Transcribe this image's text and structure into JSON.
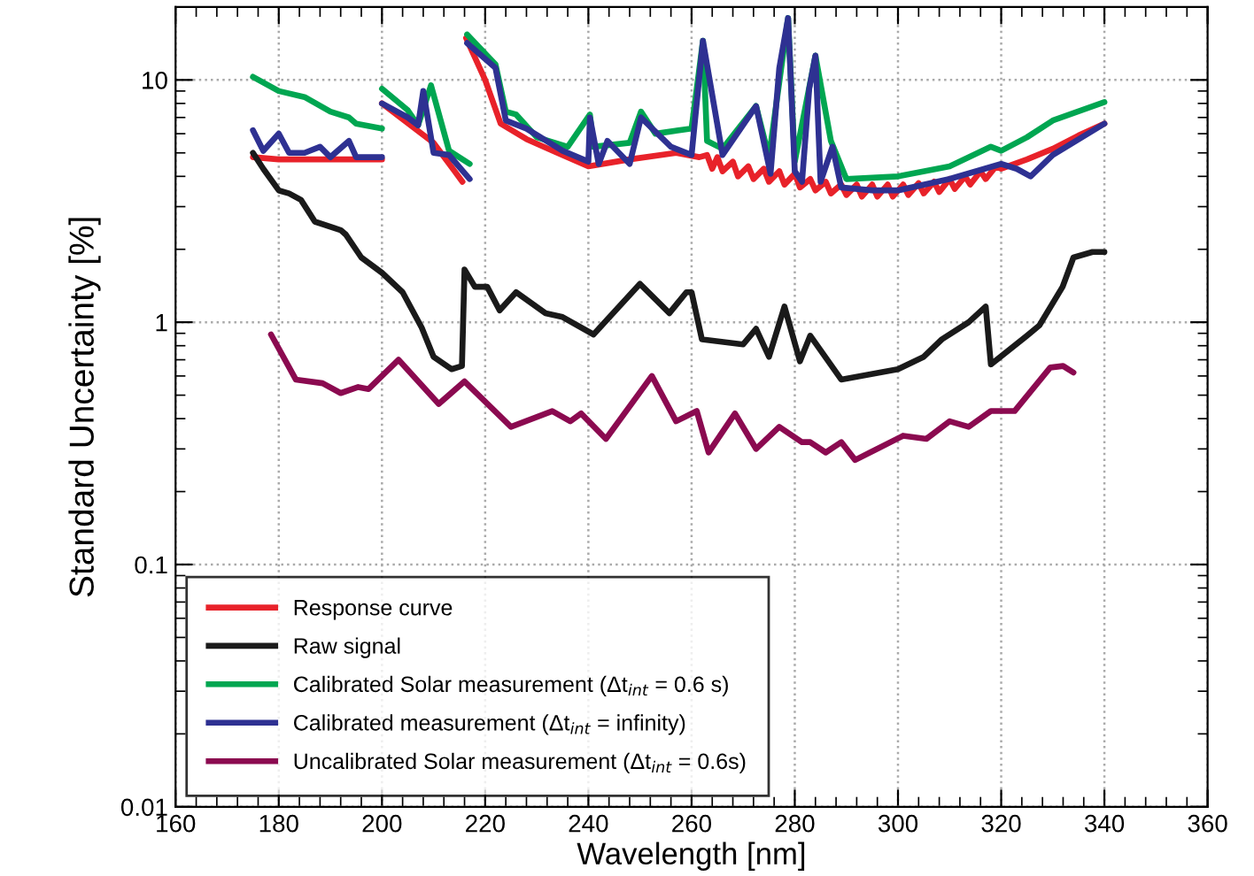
{
  "chart_data": {
    "type": "line",
    "xlabel": "Wavelength [nm]",
    "ylabel": "Standard Uncertainty [%]",
    "xlim": [
      160,
      360
    ],
    "xticks": [
      160,
      180,
      200,
      220,
      240,
      260,
      280,
      300,
      320,
      340,
      360
    ],
    "ylim": [
      0.01,
      20
    ],
    "yticks": [
      0.01,
      0.1,
      1,
      10
    ],
    "log": "y",
    "grid": true,
    "legend": "bottom left",
    "line_style": "solid",
    "marker": "none",
    "series": [
      {
        "name": "Response curve",
        "color": "#e8222a",
        "x": [
          175,
          180,
          190,
          200
        ],
        "values": [
          4.8,
          4.7,
          4.7,
          4.7
        ]
      },
      {
        "color": "#e8222a",
        "x": [
          200,
          210,
          215.6
        ],
        "values": [
          8.0,
          5.5,
          3.8
        ]
      },
      {
        "color": "#e8222a",
        "x": [
          216.3,
          220,
          223,
          228,
          234,
          240,
          248,
          257,
          261.5,
          263,
          264,
          265,
          266,
          268,
          269,
          271,
          272,
          274,
          275,
          277,
          278,
          280,
          281,
          283,
          284,
          286,
          287,
          289,
          290,
          292,
          293,
          295,
          296,
          298,
          299,
          301,
          302,
          304,
          305,
          307,
          308,
          310,
          311,
          313,
          314,
          316,
          317,
          319,
          320,
          325,
          330,
          335,
          340
        ],
        "values": [
          14.9,
          10.0,
          6.6,
          5.7,
          5.0,
          4.4,
          4.7,
          5.0,
          4.8,
          4.9,
          4.3,
          4.8,
          4.2,
          4.6,
          4.0,
          4.4,
          3.9,
          4.3,
          3.8,
          4.2,
          3.7,
          4.1,
          3.6,
          3.9,
          3.5,
          3.8,
          3.4,
          3.7,
          3.35,
          3.7,
          3.3,
          3.7,
          3.3,
          3.7,
          3.3,
          3.7,
          3.35,
          3.75,
          3.4,
          3.8,
          3.45,
          3.9,
          3.55,
          4.0,
          3.7,
          4.2,
          3.9,
          4.4,
          4.3,
          4.7,
          5.2,
          5.9,
          6.6
        ]
      },
      {
        "name": "Raw signal",
        "color": "#1a1a1a",
        "x": [
          175,
          177,
          180,
          182,
          184.3,
          187,
          192,
          193,
          196,
          200,
          204,
          207.7,
          210,
          213.5,
          215.5,
          216,
          218,
          220.4,
          222.8,
          226,
          231.7,
          235,
          241,
          250,
          255.7,
          259,
          260,
          262,
          270,
          272.5,
          275,
          278,
          281,
          283,
          289,
          300,
          305,
          308.5,
          313.7,
          317,
          318,
          325,
          327.4,
          331.9,
          334,
          337.7,
          340
        ],
        "values": [
          5.0,
          4.3,
          3.5,
          3.4,
          3.2,
          2.6,
          2.4,
          2.3,
          1.85,
          1.6,
          1.33,
          0.95,
          0.72,
          0.64,
          0.66,
          1.65,
          1.4,
          1.4,
          1.12,
          1.33,
          1.09,
          1.05,
          0.89,
          1.44,
          1.09,
          1.33,
          1.33,
          0.85,
          0.81,
          0.94,
          0.72,
          1.16,
          0.69,
          0.88,
          0.58,
          0.64,
          0.72,
          0.85,
          1.0,
          1.16,
          0.67,
          0.88,
          0.97,
          1.4,
          1.85,
          1.95,
          1.95
        ]
      },
      {
        "name": "Calibrated Solar measurement (Δt$_{int}$ = 0.6 s)",
        "color": "#00a651",
        "x": [
          175,
          180,
          185,
          190,
          193.6,
          195,
          200
        ],
        "values": [
          10.3,
          9.0,
          8.5,
          7.4,
          7.0,
          6.6,
          6.3
        ]
      },
      {
        "color": "#00a651",
        "x": [
          200,
          205,
          207,
          209.5,
          213,
          217
        ],
        "values": [
          9.2,
          7.5,
          6.5,
          9.5,
          5.1,
          4.5
        ]
      },
      {
        "color": "#00a651",
        "x": [
          216.5,
          222,
          224,
          226,
          230,
          236,
          240.3,
          241,
          248,
          250.2,
          253,
          260,
          262.2,
          263,
          266,
          272.5,
          275,
          278.7,
          280,
          284,
          287,
          290,
          300,
          310,
          318,
          320,
          325,
          330,
          340
        ],
        "values": [
          15.4,
          11.6,
          7.4,
          7.2,
          5.8,
          5.3,
          7.2,
          5.3,
          5.5,
          7.4,
          6.0,
          6.3,
          14.5,
          5.6,
          5.2,
          7.8,
          4.8,
          18.0,
          4.6,
          12.6,
          5.6,
          3.9,
          4.0,
          4.4,
          5.3,
          5.1,
          5.8,
          6.8,
          8.1
        ]
      },
      {
        "name": "Calibrated measurement (Δt$_{int}$ = infinity)",
        "color": "#2e3192",
        "x": [
          175,
          177,
          180,
          182,
          185,
          188,
          190,
          193.6,
          195,
          200
        ],
        "values": [
          6.2,
          5.1,
          6.0,
          5.0,
          5.0,
          5.3,
          4.8,
          5.6,
          4.8,
          4.8
        ]
      },
      {
        "color": "#2e3192",
        "x": [
          200,
          205,
          207,
          208,
          210,
          213,
          217
        ],
        "values": [
          8.0,
          7.0,
          6.5,
          9.0,
          5.0,
          4.9,
          3.9
        ]
      },
      {
        "color": "#2e3192",
        "x": [
          216.5,
          222,
          224,
          228,
          235,
          240,
          240.3,
          242,
          243.7,
          248,
          250.2,
          256,
          260,
          262.2,
          266,
          272.5,
          275.3,
          277,
          278.7,
          280,
          281.4,
          282.8,
          284,
          285,
          287.3,
          289,
          295,
          300,
          310,
          320,
          323,
          325.7,
          330,
          340
        ],
        "values": [
          14.2,
          11.2,
          6.8,
          6.3,
          5.1,
          4.6,
          7.0,
          4.5,
          5.6,
          4.5,
          7.0,
          5.3,
          4.9,
          14.5,
          4.9,
          7.8,
          4.1,
          11.2,
          18.0,
          4.2,
          3.8,
          9.2,
          12.6,
          3.8,
          5.3,
          3.6,
          3.5,
          3.5,
          3.9,
          4.5,
          4.3,
          4.0,
          4.9,
          6.6
        ]
      },
      {
        "name": "Uncalibrated Solar measurement (Δt$_{int}$ = 0.6s)",
        "color": "#8b0a50",
        "x": [
          178.5,
          183.3,
          188.5,
          192,
          195.4,
          197.4,
          203.2,
          211,
          216,
          225,
          233,
          236.5,
          238.6,
          243.4,
          252.3,
          257,
          261,
          263.3,
          268.4,
          272.5,
          277,
          281.4,
          283,
          286,
          289,
          291.7,
          301,
          305.5,
          310,
          313.7,
          318,
          322.6,
          329.5,
          332,
          334
        ],
        "values": [
          0.89,
          0.58,
          0.56,
          0.51,
          0.54,
          0.53,
          0.7,
          0.46,
          0.57,
          0.37,
          0.43,
          0.39,
          0.42,
          0.33,
          0.6,
          0.39,
          0.43,
          0.29,
          0.42,
          0.3,
          0.37,
          0.32,
          0.32,
          0.29,
          0.32,
          0.27,
          0.34,
          0.33,
          0.39,
          0.37,
          0.43,
          0.43,
          0.65,
          0.66,
          0.62
        ]
      }
    ]
  }
}
